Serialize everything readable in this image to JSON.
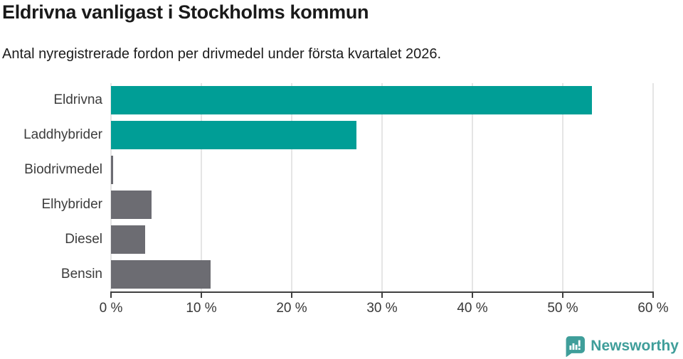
{
  "header": {
    "title": "Eldrivna vanligast i Stockholms kommun",
    "subtitle": "Antal nyregistrerade fordon per drivmedel under första kvartalet 2026."
  },
  "chart_data": {
    "type": "bar",
    "orientation": "horizontal",
    "title": "Eldrivna vanligast i Stockholms kommun",
    "subtitle": "Antal nyregistrerade fordon per drivmedel under första kvartalet 2026.",
    "categories": [
      "Eldrivna",
      "Laddhybrider",
      "Biodrivmedel",
      "Elhybrider",
      "Diesel",
      "Bensin"
    ],
    "values": [
      53.2,
      27.2,
      0.2,
      4.5,
      3.8,
      11.0
    ],
    "unit": "%",
    "xlim": [
      0,
      60
    ],
    "x_ticks": [
      0,
      10,
      20,
      30,
      40,
      50,
      60
    ],
    "x_tick_suffix": " %",
    "grid": true,
    "legend": "none",
    "bar_colors": [
      "#009e96",
      "#009e96",
      "#6c6c72",
      "#6c6c72",
      "#6c6c72",
      "#6c6c72"
    ],
    "colors": {
      "accent_teal": "#009e96",
      "neutral_gray": "#6c6c72",
      "gridline": "#e5e5e5",
      "axis": "#404040",
      "label_text": "#3c3c3c"
    }
  },
  "footer": {
    "brand": "Newsworthy",
    "brand_color": "#3f9e9a",
    "logo_icon": "newsworthy-speech-bubble-bar-chart-icon"
  }
}
